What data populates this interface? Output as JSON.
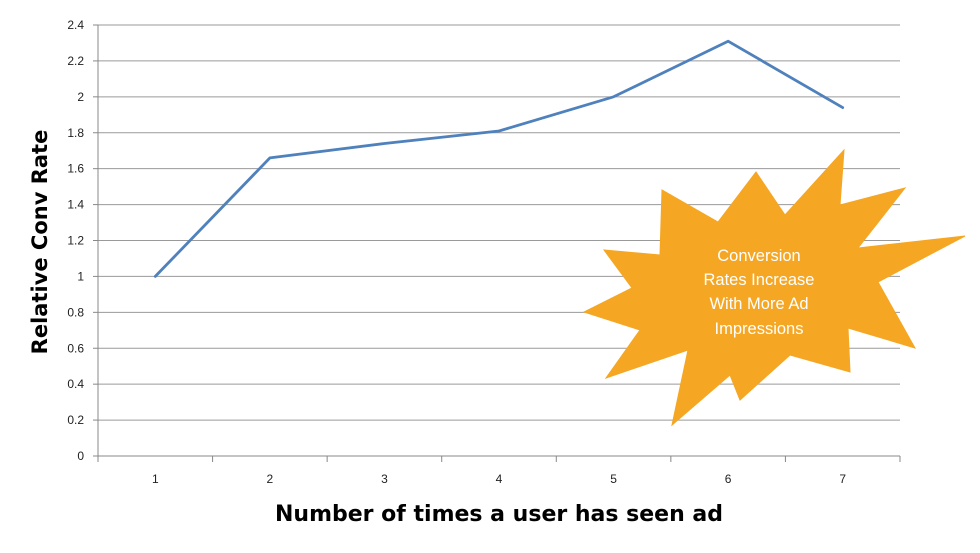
{
  "chart_data": {
    "type": "line",
    "x": [
      1,
      2,
      3,
      4,
      5,
      6,
      7
    ],
    "series": [
      {
        "values": [
          1.0,
          1.66,
          1.74,
          1.81,
          2.0,
          2.31,
          1.94
        ]
      }
    ],
    "xlabel": "Number of times a user has seen ad",
    "ylabel": "Relative Conv Rate",
    "xticks": [
      "1",
      "2",
      "3",
      "4",
      "5",
      "6",
      "7"
    ],
    "yticks": [
      "0",
      "0.2",
      "0.4",
      "0.6",
      "0.8",
      "1",
      "1.2",
      "1.4",
      "1.6",
      "1.8",
      "2",
      "2.2",
      "2.4"
    ],
    "ylim": [
      0,
      2.4
    ],
    "grid": true,
    "line_color": "#4f81bd",
    "annotation": {
      "lines": [
        "Conversion",
        "Rates Increase",
        "With More Ad",
        "Impressions"
      ],
      "shape": "starburst",
      "fill_color": "#f5a623",
      "text_color": "#ffffff"
    }
  }
}
